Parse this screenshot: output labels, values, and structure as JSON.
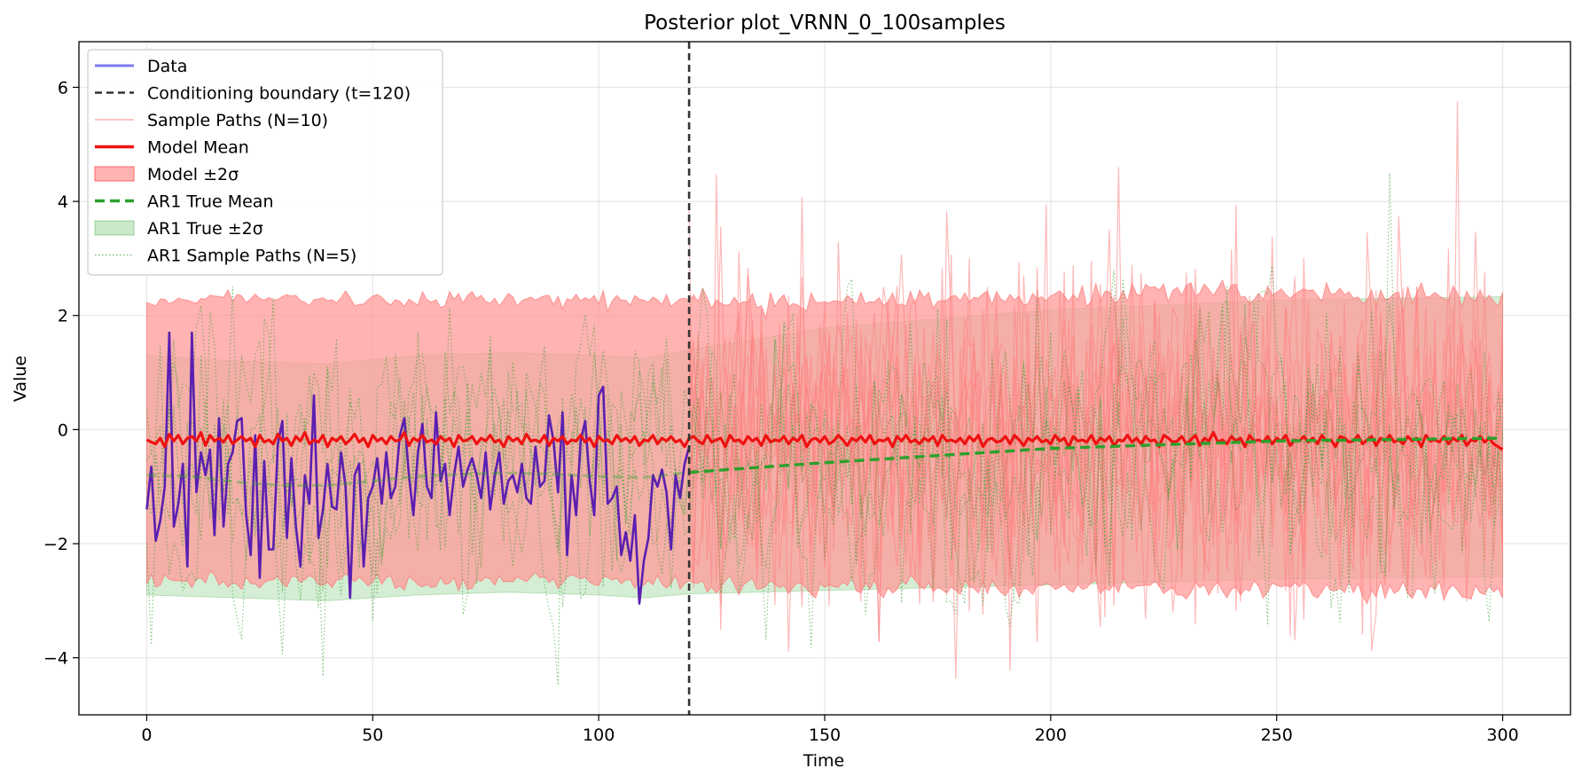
{
  "chart_data": {
    "type": "line",
    "title": "Posterior plot_VRNN_0_100samples",
    "xlabel": "Time",
    "ylabel": "Value",
    "xlim": [
      -15,
      315
    ],
    "ylim": [
      -5,
      6.8
    ],
    "x_ticks": [
      0,
      50,
      100,
      150,
      200,
      250,
      300
    ],
    "x_tick_labels": [
      "0",
      "50",
      "100",
      "150",
      "200",
      "250",
      "300"
    ],
    "y_ticks": [
      -4,
      -2,
      0,
      2,
      4,
      6
    ],
    "y_tick_labels": [
      "−4",
      "−2",
      "0",
      "2",
      "4",
      "6"
    ],
    "grid": true,
    "legend_position": "upper-left",
    "conditioning_boundary": 120,
    "colors": {
      "data": "#5a1fb0",
      "boundary": "#333333",
      "sample_paths": "#ff7f7f",
      "model_mean": "#ee1111",
      "model_band": "#ff9999",
      "ar1_mean": "#2ca02c",
      "ar1_band": "#9fd69f",
      "ar1_samples": "#2ca02c"
    },
    "legend": [
      {
        "label": "Data",
        "style": "data"
      },
      {
        "label": "Conditioning boundary (t=120)",
        "style": "boundary"
      },
      {
        "label": "Sample Paths (N=10)",
        "style": "sample"
      },
      {
        "label": "Model Mean",
        "style": "model_mean"
      },
      {
        "label": "Model ±2σ",
        "style": "model_band"
      },
      {
        "label": "AR1 True Mean",
        "style": "ar1_mean"
      },
      {
        "label": "AR1 True ±2σ",
        "style": "ar1_band"
      },
      {
        "label": "AR1 Sample Paths (N=5)",
        "style": "ar1_samples"
      }
    ],
    "series": [
      {
        "name": "Data",
        "x_start": 0,
        "values": [
          -1.4,
          -0.65,
          -1.95,
          -1.6,
          -1.0,
          1.7,
          -1.7,
          -1.3,
          -0.6,
          -2.4,
          1.7,
          -1.1,
          -0.4,
          -0.8,
          -0.35,
          -1.85,
          0.2,
          -1.7,
          -0.6,
          -0.4,
          0.15,
          0.2,
          -1.5,
          -2.2,
          -0.1,
          -2.6,
          -0.55,
          -2.1,
          -2.1,
          -0.25,
          0.15,
          -1.9,
          -0.5,
          -1.7,
          -2.4,
          -0.8,
          -1.3,
          0.6,
          -1.9,
          -1.4,
          -0.6,
          -1.35,
          -1.4,
          -0.4,
          -1.0,
          -2.95,
          -0.8,
          -0.6,
          -2.4,
          -1.2,
          -1.0,
          -0.5,
          -1.3,
          -0.4,
          -1.2,
          -1.0,
          -0.1,
          0.2,
          -0.8,
          -1.5,
          -0.4,
          0.1,
          -1.0,
          -1.2,
          0.3,
          -0.9,
          -0.6,
          -1.5,
          -0.8,
          -0.3,
          -1.0,
          -0.7,
          -0.5,
          -0.8,
          -1.2,
          -0.4,
          -1.4,
          -0.8,
          -0.4,
          -1.3,
          -0.9,
          -0.8,
          -1.1,
          -0.6,
          -1.2,
          -1.3,
          -0.3,
          -1.0,
          -0.9,
          0.25,
          -0.2,
          -1.1,
          0.3,
          -2.2,
          -0.8,
          -1.5,
          -0.2,
          0.15,
          -0.9,
          -1.5,
          0.6,
          0.75,
          -1.3,
          -1.2,
          -1.0,
          -2.2,
          -1.8,
          -2.3,
          -1.5,
          -3.05,
          -2.3,
          -1.9,
          -0.8,
          -1.0,
          -0.7,
          -1.1,
          -2.1,
          -0.8,
          -1.2,
          -0.6,
          -0.3
        ]
      },
      {
        "name": "Model Mean",
        "x_start": 0,
        "values": [
          -0.18,
          -0.22,
          -0.25,
          -0.15,
          -0.3,
          -0.08,
          -0.2,
          -0.1,
          -0.25,
          -0.15,
          -0.12,
          -0.2,
          -0.05,
          -0.28,
          -0.1,
          -0.2,
          -0.15,
          -0.22,
          -0.1,
          -0.25,
          -0.18,
          -0.12,
          -0.2,
          -0.15,
          -0.3,
          -0.1,
          -0.22,
          -0.18,
          -0.25,
          -0.08,
          -0.2,
          -0.15,
          -0.28,
          -0.12,
          -0.2,
          -0.05,
          -0.25,
          -0.18,
          -0.22,
          -0.1,
          -0.3,
          -0.15,
          -0.2,
          -0.12,
          -0.25,
          -0.18,
          -0.08,
          -0.22,
          -0.15,
          -0.3,
          -0.1,
          -0.2,
          -0.15,
          -0.25,
          -0.12,
          -0.2,
          -0.18,
          -0.05,
          -0.28,
          -0.15,
          -0.2,
          -0.1,
          -0.22,
          -0.18,
          -0.25,
          -0.12,
          -0.2,
          -0.15,
          -0.3,
          -0.1,
          -0.2,
          -0.18,
          -0.12,
          -0.25,
          -0.15,
          -0.2,
          -0.1,
          -0.22,
          -0.18,
          -0.3,
          -0.12,
          -0.2,
          -0.15,
          -0.25,
          -0.08,
          -0.2,
          -0.18,
          -0.22,
          -0.1,
          -0.28,
          -0.15,
          -0.2,
          -0.12,
          -0.25,
          -0.18,
          -0.2,
          -0.1,
          -0.22,
          -0.15,
          -0.3,
          -0.12,
          -0.2,
          -0.18,
          -0.25,
          -0.1,
          -0.2,
          -0.15,
          -0.22,
          -0.12,
          -0.28,
          -0.18,
          -0.2,
          -0.1,
          -0.25,
          -0.15,
          -0.2,
          -0.12,
          -0.22,
          -0.18,
          -0.3,
          -0.15,
          -0.12,
          -0.2,
          -0.25,
          -0.1,
          -0.22,
          -0.18,
          -0.15,
          -0.3,
          -0.1,
          -0.2,
          -0.18,
          -0.25,
          -0.12,
          -0.2,
          -0.15,
          -0.28,
          -0.1,
          -0.22,
          -0.18,
          -0.2,
          -0.12,
          -0.25,
          -0.15,
          -0.2,
          -0.1,
          -0.3,
          -0.18,
          -0.15,
          -0.22,
          -0.12,
          -0.25,
          -0.2,
          -0.1,
          -0.18,
          -0.28,
          -0.15,
          -0.2,
          -0.12,
          -0.22,
          -0.1,
          -0.25,
          -0.18,
          -0.2,
          -0.15,
          -0.3,
          -0.12,
          -0.2,
          -0.1,
          -0.22,
          -0.18,
          -0.25,
          -0.15,
          -0.2,
          -0.12,
          -0.28,
          -0.1,
          -0.2,
          -0.18,
          -0.22,
          -0.15,
          -0.25,
          -0.12,
          -0.2,
          -0.1,
          -0.3,
          -0.18,
          -0.15,
          -0.22,
          -0.2,
          -0.12,
          -0.25,
          -0.1,
          -0.18,
          -0.28,
          -0.15,
          -0.2,
          -0.12,
          -0.22,
          -0.18,
          -0.25,
          -0.1,
          -0.2,
          -0.15,
          -0.3,
          -0.12,
          -0.2,
          -0.18,
          -0.22,
          -0.1,
          -0.25,
          -0.15,
          -0.2,
          -0.12,
          -0.28,
          -0.18,
          -0.2,
          -0.1,
          -0.22,
          -0.15,
          -0.25,
          -0.12,
          -0.2,
          -0.18,
          -0.3,
          -0.1,
          -0.15,
          -0.22,
          -0.2,
          -0.12,
          -0.25,
          -0.18,
          -0.1,
          -0.28,
          -0.15,
          -0.2,
          -0.05,
          -0.22,
          -0.18,
          -0.25,
          -0.12,
          -0.2,
          -0.15,
          -0.3,
          -0.1,
          -0.2,
          -0.18,
          -0.22,
          -0.12,
          -0.25,
          -0.15,
          -0.2,
          -0.1,
          -0.28,
          -0.18,
          -0.2,
          -0.12,
          -0.22,
          -0.15,
          -0.25,
          -0.1,
          -0.2,
          -0.18,
          -0.3,
          -0.12,
          -0.15,
          -0.22,
          -0.2,
          -0.1,
          -0.25,
          -0.18,
          -0.12,
          -0.28,
          -0.15,
          -0.2,
          -0.1,
          -0.22,
          -0.18,
          -0.25,
          -0.12,
          -0.2,
          -0.15,
          -0.3,
          -0.1,
          -0.2,
          -0.18,
          -0.22,
          -0.12,
          -0.25,
          -0.15,
          -0.2,
          -0.1,
          -0.28,
          -0.18,
          -0.2,
          -0.12,
          -0.22,
          -0.15,
          -0.25,
          -0.3,
          -0.35
        ]
      },
      {
        "name": "AR1 True Mean",
        "knots": [
          [
            0,
            -0.8
          ],
          [
            10,
            -0.82
          ],
          [
            20,
            -0.92
          ],
          [
            30,
            -0.98
          ],
          [
            40,
            -0.98
          ],
          [
            50,
            -0.9
          ],
          [
            60,
            -0.82
          ],
          [
            70,
            -0.78
          ],
          [
            80,
            -0.76
          ],
          [
            90,
            -0.78
          ],
          [
            100,
            -0.82
          ],
          [
            110,
            -0.84
          ],
          [
            120,
            -0.75
          ],
          [
            150,
            -0.58
          ],
          [
            200,
            -0.33
          ],
          [
            250,
            -0.2
          ],
          [
            300,
            -0.15
          ]
        ]
      }
    ],
    "bands": [
      {
        "name": "Model ±2σ",
        "upper_knots": [
          [
            0,
            2.25
          ],
          [
            20,
            2.3
          ],
          [
            40,
            2.3
          ],
          [
            60,
            2.25
          ],
          [
            80,
            2.3
          ],
          [
            100,
            2.25
          ],
          [
            120,
            2.3
          ],
          [
            150,
            2.25
          ],
          [
            200,
            2.35
          ],
          [
            250,
            2.4
          ],
          [
            300,
            2.3
          ]
        ],
        "lower_knots": [
          [
            0,
            -2.65
          ],
          [
            20,
            -2.7
          ],
          [
            40,
            -2.65
          ],
          [
            60,
            -2.7
          ],
          [
            80,
            -2.65
          ],
          [
            100,
            -2.65
          ],
          [
            120,
            -2.7
          ],
          [
            150,
            -2.75
          ],
          [
            200,
            -2.75
          ],
          [
            250,
            -2.8
          ],
          [
            300,
            -2.85
          ]
        ]
      },
      {
        "name": "AR1 True ±2σ",
        "upper_knots": [
          [
            0,
            1.3
          ],
          [
            20,
            1.2
          ],
          [
            40,
            1.15
          ],
          [
            60,
            1.3
          ],
          [
            80,
            1.35
          ],
          [
            100,
            1.3
          ],
          [
            110,
            1.25
          ],
          [
            120,
            1.4
          ],
          [
            150,
            1.78
          ],
          [
            200,
            2.1
          ],
          [
            250,
            2.27
          ],
          [
            300,
            2.33
          ]
        ],
        "lower_knots": [
          [
            0,
            -2.9
          ],
          [
            20,
            -2.95
          ],
          [
            40,
            -3.0
          ],
          [
            60,
            -2.9
          ],
          [
            80,
            -2.85
          ],
          [
            100,
            -2.9
          ],
          [
            110,
            -2.95
          ],
          [
            120,
            -2.88
          ],
          [
            150,
            -2.82
          ],
          [
            200,
            -2.72
          ],
          [
            250,
            -2.62
          ],
          [
            300,
            -2.58
          ]
        ]
      }
    ]
  }
}
